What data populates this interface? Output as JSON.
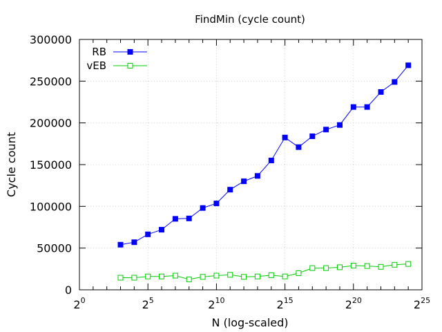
{
  "chart_data": {
    "type": "line",
    "title": "FindMin (cycle count)",
    "xlabel": "N (log-scaled)",
    "ylabel": "Cycle count",
    "x_scale": "log2",
    "xlim": [
      1,
      33554432
    ],
    "ylim": [
      0,
      300000
    ],
    "x_ticks": [
      {
        "base": "2",
        "exp": "0"
      },
      {
        "base": "2",
        "exp": "5"
      },
      {
        "base": "2",
        "exp": "10"
      },
      {
        "base": "2",
        "exp": "15"
      },
      {
        "base": "2",
        "exp": "20"
      },
      {
        "base": "2",
        "exp": "25"
      }
    ],
    "y_ticks": [
      "0",
      "50000",
      "100000",
      "150000",
      "200000",
      "250000",
      "300000"
    ],
    "grid": true,
    "legend_position": "top-left",
    "x": [
      8,
      16,
      32,
      64,
      128,
      256,
      512,
      1024,
      2048,
      4096,
      8192,
      16384,
      32768,
      65536,
      131072,
      262144,
      524288,
      1048576,
      2097152,
      4194304,
      8388608,
      16777216
    ],
    "series": [
      {
        "name": "RB",
        "color": "#0000ff",
        "marker": "filled-square",
        "values": [
          54000,
          57000,
          66500,
          72000,
          85000,
          85500,
          98000,
          103500,
          120000,
          130000,
          136500,
          155000,
          182500,
          171000,
          184000,
          192000,
          197500,
          219000,
          219000,
          237000,
          249000,
          269000
        ]
      },
      {
        "name": "vEB",
        "color": "#00cc00",
        "marker": "open-square",
        "values": [
          14500,
          14500,
          16000,
          16000,
          17000,
          12500,
          15500,
          17000,
          18000,
          15500,
          16000,
          17500,
          16000,
          20000,
          26000,
          26000,
          27000,
          29000,
          28500,
          27500,
          30000,
          31000
        ]
      }
    ]
  }
}
